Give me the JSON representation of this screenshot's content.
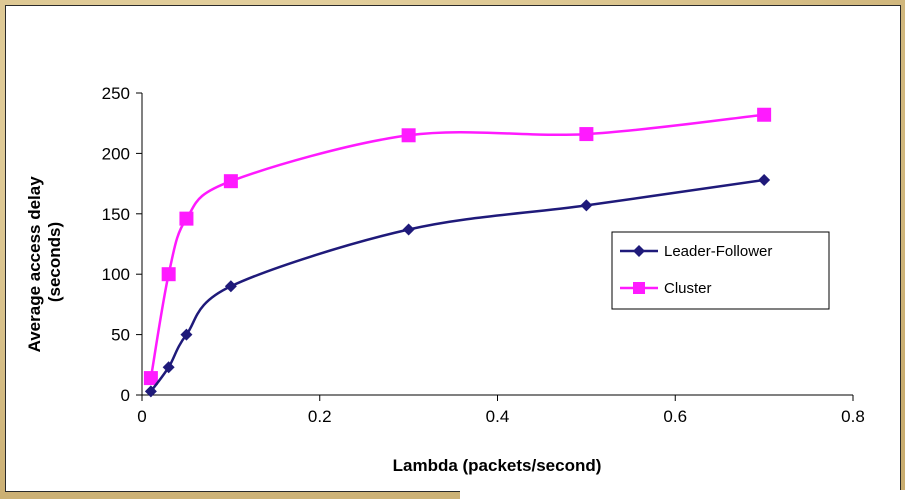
{
  "colors": {
    "background": "#d9c48f",
    "leader_follower": "#1f1a7a",
    "cluster": "#ff1aff",
    "axis": "#000000"
  },
  "chart_data": {
    "type": "line",
    "title": "",
    "xlabel": "Lambda  (packets/second)",
    "ylabel_lines": [
      "Average access delay",
      "(seconds)"
    ],
    "xlim": [
      0,
      0.8
    ],
    "ylim": [
      0,
      250
    ],
    "xticks": [
      0,
      0.2,
      0.4,
      0.6,
      0.8
    ],
    "xtick_labels": [
      "0",
      "0.2",
      "0.4",
      "0.6",
      "0.8"
    ],
    "yticks": [
      0,
      50,
      100,
      150,
      200,
      250
    ],
    "ytick_labels": [
      "0",
      "50",
      "100",
      "150",
      "200",
      "250"
    ],
    "grid": false,
    "legend_position": "right",
    "series": [
      {
        "name": "Leader-Follower",
        "marker": "diamond",
        "color": "#1f1a7a",
        "points": [
          [
            0.01,
            3
          ],
          [
            0.03,
            23
          ],
          [
            0.05,
            50
          ],
          [
            0.1,
            90
          ],
          [
            0.3,
            137
          ],
          [
            0.5,
            157
          ],
          [
            0.7,
            178
          ]
        ]
      },
      {
        "name": "Cluster",
        "marker": "square",
        "color": "#ff1aff",
        "points": [
          [
            0.01,
            14
          ],
          [
            0.03,
            100
          ],
          [
            0.05,
            146
          ],
          [
            0.1,
            177
          ],
          [
            0.3,
            215
          ],
          [
            0.5,
            216
          ],
          [
            0.7,
            232
          ]
        ]
      }
    ]
  }
}
